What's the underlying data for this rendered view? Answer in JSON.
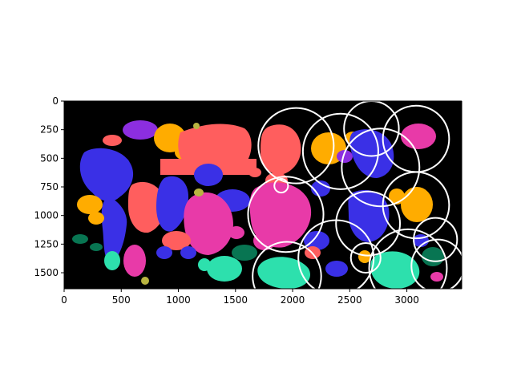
{
  "chart_data": {
    "type": "scatter",
    "subtype": "image-with-circle-overlay",
    "xlim": [
      0,
      3480
    ],
    "ylim": [
      1640,
      0
    ],
    "y_inverted": true,
    "grid": false,
    "legend": "none",
    "x_ticks": [
      0,
      500,
      1000,
      1500,
      2000,
      2500,
      3000
    ],
    "y_ticks": [
      0,
      250,
      500,
      750,
      1000,
      1250,
      1500
    ],
    "image_background": "#000000",
    "region_colors": [
      "#3a30e6",
      "#ff5e5e",
      "#ffac00",
      "#e83aa8",
      "#8c2ee0",
      "#2de0ad",
      "#087552",
      "#b8b440"
    ],
    "circles": [
      {
        "x": 2030,
        "y": 390,
        "r": 330
      },
      {
        "x": 2420,
        "y": 440,
        "r": 330
      },
      {
        "x": 2690,
        "y": 240,
        "r": 240
      },
      {
        "x": 3080,
        "y": 330,
        "r": 290
      },
      {
        "x": 2770,
        "y": 580,
        "r": 340
      },
      {
        "x": 1940,
        "y": 990,
        "r": 330
      },
      {
        "x": 1900,
        "y": 740,
        "r": 60
      },
      {
        "x": 2660,
        "y": 1070,
        "r": 280
      },
      {
        "x": 3080,
        "y": 910,
        "r": 290
      },
      {
        "x": 2380,
        "y": 1370,
        "r": 330
      },
      {
        "x": 1950,
        "y": 1530,
        "r": 300
      },
      {
        "x": 2640,
        "y": 1370,
        "r": 130
      },
      {
        "x": 3010,
        "y": 1460,
        "r": 340
      },
      {
        "x": 3250,
        "y": 1210,
        "r": 190
      },
      {
        "x": 3270,
        "y": 1440,
        "r": 230
      }
    ]
  }
}
